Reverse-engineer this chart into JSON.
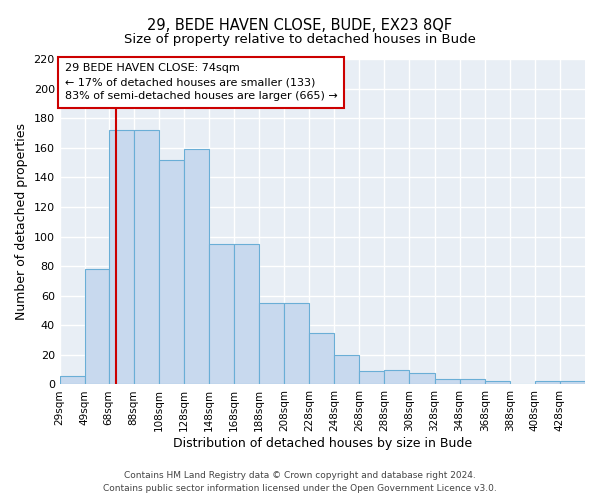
{
  "title": "29, BEDE HAVEN CLOSE, BUDE, EX23 8QF",
  "subtitle": "Size of property relative to detached houses in Bude",
  "xlabel": "Distribution of detached houses by size in Bude",
  "ylabel": "Number of detached properties",
  "bin_labels": [
    "29sqm",
    "49sqm",
    "68sqm",
    "88sqm",
    "108sqm",
    "128sqm",
    "148sqm",
    "168sqm",
    "188sqm",
    "208sqm",
    "228sqm",
    "248sqm",
    "268sqm",
    "288sqm",
    "308sqm",
    "328sqm",
    "348sqm",
    "368sqm",
    "388sqm",
    "408sqm",
    "428sqm"
  ],
  "bar_values": [
    6,
    78,
    172,
    172,
    152,
    159,
    95,
    95,
    55,
    55,
    35,
    20,
    9,
    10,
    8,
    4,
    4,
    2,
    0,
    2,
    2
  ],
  "bar_color": "#c8d9ee",
  "bar_edge_color": "#6aaed6",
  "vline_x": 74,
  "vline_color": "#cc0000",
  "annotation_title": "29 BEDE HAVEN CLOSE: 74sqm",
  "annotation_line1": "← 17% of detached houses are smaller (133)",
  "annotation_line2": "83% of semi-detached houses are larger (665) →",
  "annotation_box_color": "#ffffff",
  "annotation_box_edge": "#cc0000",
  "ylim": [
    0,
    220
  ],
  "yticks": [
    0,
    20,
    40,
    60,
    80,
    100,
    120,
    140,
    160,
    180,
    200,
    220
  ],
  "bin_edges": [
    29,
    49,
    68,
    88,
    108,
    128,
    148,
    168,
    188,
    208,
    228,
    248,
    268,
    288,
    308,
    328,
    348,
    368,
    388,
    408,
    428,
    448
  ],
  "footer1": "Contains HM Land Registry data © Crown copyright and database right 2024.",
  "footer2": "Contains public sector information licensed under the Open Government Licence v3.0.",
  "bg_color": "#e8eef5",
  "grid_color": "#ffffff"
}
